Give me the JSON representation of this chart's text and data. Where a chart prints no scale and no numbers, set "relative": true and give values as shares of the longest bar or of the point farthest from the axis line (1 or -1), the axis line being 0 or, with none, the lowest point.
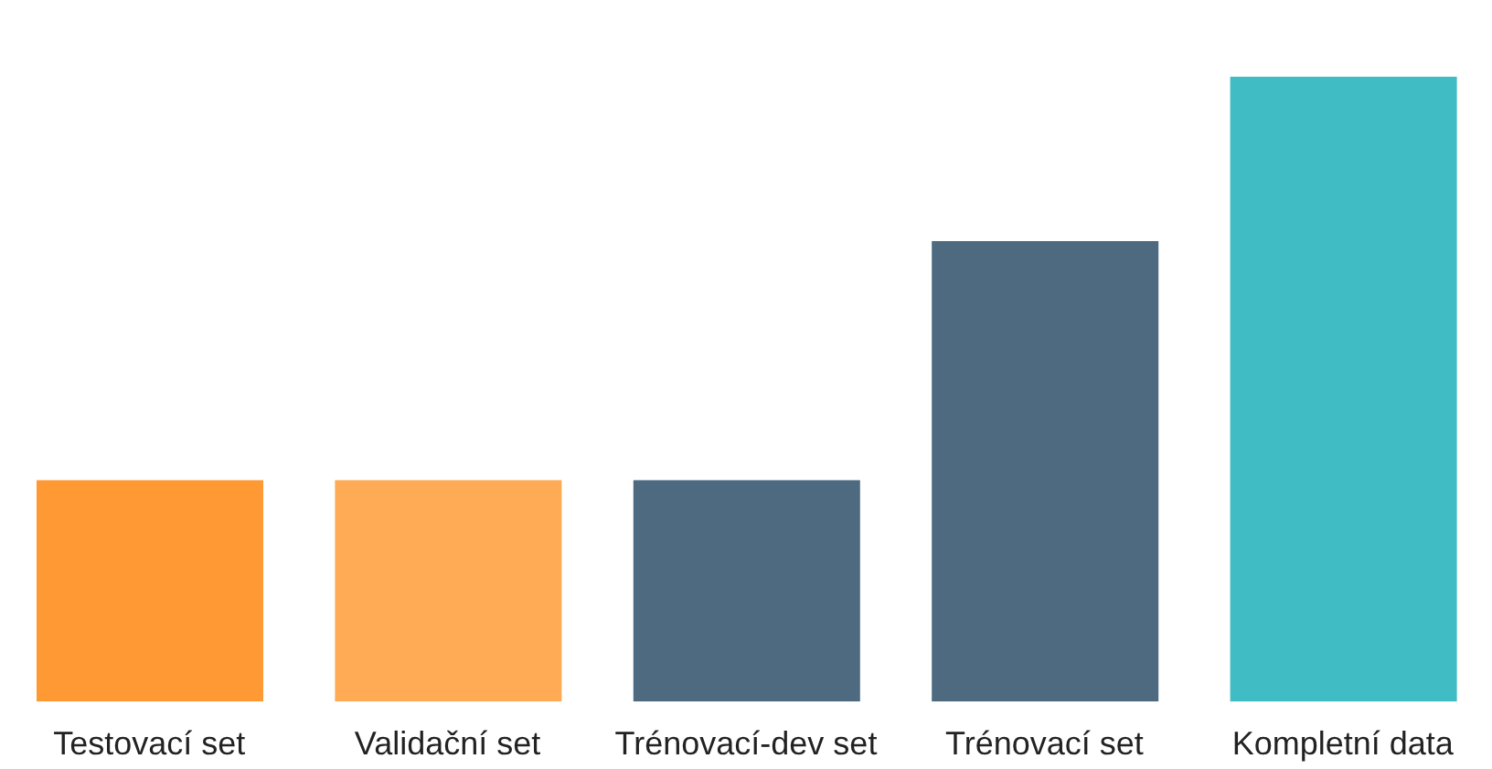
{
  "chart_data": {
    "type": "bar",
    "relative": true,
    "categories": [
      "Testovací set",
      "Validační set",
      "Trénovací-dev set",
      "Trénovací set",
      "Kompletní data"
    ],
    "values": [
      0.354,
      0.354,
      0.354,
      0.737,
      1
    ],
    "colors": [
      "#ff9933",
      "#ffaa55",
      "#4d6a80",
      "#4d6a80",
      "#40bcc4"
    ]
  }
}
